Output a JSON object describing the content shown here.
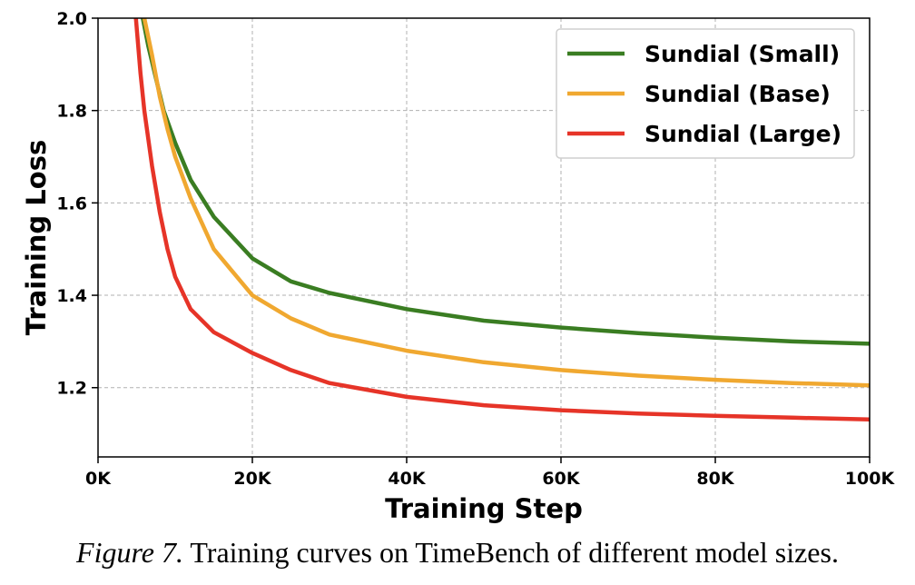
{
  "chart_data": {
    "type": "line",
    "title": "",
    "xlabel": "Training Step",
    "ylabel": "Training Loss",
    "xlim": [
      0,
      100000
    ],
    "ylim": [
      1.05,
      2.0
    ],
    "xticks": [
      0,
      20000,
      40000,
      60000,
      80000,
      100000
    ],
    "xtick_labels": [
      "0K",
      "20K",
      "40K",
      "60K",
      "80K",
      "100K"
    ],
    "yticks": [
      1.2,
      1.4,
      1.6,
      1.8,
      2.0
    ],
    "ytick_labels": [
      "1.2",
      "1.4",
      "1.6",
      "1.8",
      "2.0"
    ],
    "grid": true,
    "legend_position": "top-right",
    "series": [
      {
        "name": "Sundial (Small)",
        "color": "#3a7d22",
        "x": [
          5800,
          6500,
          7500,
          8500,
          10000,
          12000,
          15000,
          20000,
          25000,
          30000,
          40000,
          50000,
          60000,
          70000,
          80000,
          90000,
          100000
        ],
        "y": [
          2.0,
          1.94,
          1.87,
          1.8,
          1.73,
          1.65,
          1.57,
          1.48,
          1.43,
          1.405,
          1.37,
          1.345,
          1.33,
          1.318,
          1.308,
          1.3,
          1.295
        ]
      },
      {
        "name": "Sundial (Base)",
        "color": "#f0a830",
        "x": [
          6000,
          7000,
          8000,
          9000,
          10000,
          12000,
          15000,
          20000,
          25000,
          30000,
          40000,
          50000,
          60000,
          70000,
          80000,
          90000,
          100000
        ],
        "y": [
          2.0,
          1.92,
          1.83,
          1.76,
          1.7,
          1.61,
          1.5,
          1.4,
          1.35,
          1.315,
          1.28,
          1.255,
          1.238,
          1.226,
          1.217,
          1.21,
          1.205
        ]
      },
      {
        "name": "Sundial (Large)",
        "color": "#e63428",
        "x": [
          4900,
          5500,
          6000,
          7000,
          8000,
          9000,
          10000,
          12000,
          15000,
          20000,
          25000,
          30000,
          40000,
          50000,
          60000,
          70000,
          80000,
          90000,
          100000
        ],
        "y": [
          2.0,
          1.88,
          1.8,
          1.68,
          1.58,
          1.5,
          1.44,
          1.37,
          1.32,
          1.275,
          1.238,
          1.21,
          1.18,
          1.162,
          1.151,
          1.144,
          1.139,
          1.135,
          1.131
        ]
      }
    ]
  },
  "caption": {
    "label": "Figure 7.",
    "text": "Training curves on TimeBench of different model sizes."
  }
}
